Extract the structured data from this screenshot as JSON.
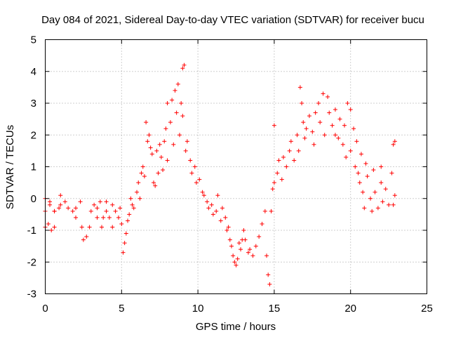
{
  "chart_data": {
    "type": "scatter",
    "title": "Day 084 of 2021, Sidereal Day-to-day VTEC variation (SDTVAR) for receiver bucu",
    "xlabel": "GPS time / hours",
    "ylabel": "SDTVAR / TECUs",
    "xlim": [
      0,
      25
    ],
    "ylim": [
      -3,
      5
    ],
    "xticks": [
      "0",
      "5",
      "10",
      "15",
      "20",
      "25"
    ],
    "yticks": [
      "-3",
      "-2",
      "-1",
      "0",
      "1",
      "2",
      "3",
      "4",
      "5"
    ],
    "grid": true,
    "marker": "+",
    "color": "#ff0000",
    "series": [
      {
        "points": [
          [
            0.0,
            -0.9
          ],
          [
            0.2,
            -0.8
          ],
          [
            0.4,
            -1.0
          ],
          [
            0.6,
            -0.9
          ],
          [
            0.0,
            -0.4
          ],
          [
            0.3,
            -0.2
          ],
          [
            0.6,
            -0.4
          ],
          [
            0.9,
            -0.3
          ],
          [
            0.0,
            0.0
          ],
          [
            0.3,
            -0.1
          ],
          [
            0.6,
            -0.4
          ],
          [
            1.0,
            -0.2
          ],
          [
            1.0,
            0.1
          ],
          [
            1.3,
            -0.1
          ],
          [
            1.5,
            -0.3
          ],
          [
            1.8,
            -0.4
          ],
          [
            2.0,
            -0.3
          ],
          [
            2.0,
            -0.6
          ],
          [
            2.3,
            -0.1
          ],
          [
            2.4,
            -0.9
          ],
          [
            2.5,
            -1.3
          ],
          [
            2.7,
            -1.2
          ],
          [
            2.9,
            -0.9
          ],
          [
            3.0,
            -0.4
          ],
          [
            3.2,
            -0.2
          ],
          [
            3.4,
            -0.3
          ],
          [
            3.4,
            -0.6
          ],
          [
            3.6,
            -0.1
          ],
          [
            3.7,
            -0.9
          ],
          [
            3.8,
            -0.6
          ],
          [
            4.0,
            -0.4
          ],
          [
            4.0,
            -0.1
          ],
          [
            4.2,
            -0.6
          ],
          [
            4.4,
            -0.2
          ],
          [
            4.4,
            -0.9
          ],
          [
            4.6,
            -0.4
          ],
          [
            4.8,
            -0.6
          ],
          [
            5.0,
            -0.8
          ],
          [
            4.9,
            -0.3
          ],
          [
            5.1,
            -1.7
          ],
          [
            5.2,
            -1.4
          ],
          [
            5.3,
            -1.1
          ],
          [
            5.4,
            -0.7
          ],
          [
            5.5,
            -0.5
          ],
          [
            5.6,
            0.0
          ],
          [
            5.7,
            -0.2
          ],
          [
            5.8,
            -0.3
          ],
          [
            6.0,
            0.2
          ],
          [
            6.1,
            0.5
          ],
          [
            6.2,
            0.0
          ],
          [
            6.3,
            0.8
          ],
          [
            6.4,
            1.0
          ],
          [
            6.5,
            0.7
          ],
          [
            6.6,
            2.4
          ],
          [
            6.7,
            1.8
          ],
          [
            6.8,
            2.0
          ],
          [
            6.9,
            1.6
          ],
          [
            7.0,
            1.4
          ],
          [
            7.1,
            0.5
          ],
          [
            7.2,
            0.4
          ],
          [
            7.3,
            1.5
          ],
          [
            7.4,
            0.8
          ],
          [
            7.5,
            1.7
          ],
          [
            7.6,
            1.3
          ],
          [
            7.7,
            0.9
          ],
          [
            7.8,
            1.8
          ],
          [
            7.9,
            2.2
          ],
          [
            8.0,
            1.2
          ],
          [
            8.0,
            3.0
          ],
          [
            8.2,
            2.4
          ],
          [
            8.3,
            3.1
          ],
          [
            8.4,
            1.7
          ],
          [
            8.5,
            3.4
          ],
          [
            8.6,
            2.7
          ],
          [
            8.7,
            3.6
          ],
          [
            8.8,
            2.0
          ],
          [
            8.9,
            3.0
          ],
          [
            9.0,
            4.1
          ],
          [
            9.0,
            2.6
          ],
          [
            9.1,
            4.2
          ],
          [
            9.2,
            1.5
          ],
          [
            9.3,
            1.8
          ],
          [
            9.5,
            1.2
          ],
          [
            9.6,
            0.8
          ],
          [
            9.8,
            1.0
          ],
          [
            9.9,
            0.5
          ],
          [
            10.1,
            0.6
          ],
          [
            10.3,
            0.2
          ],
          [
            10.4,
            0.1
          ],
          [
            10.6,
            -0.1
          ],
          [
            10.7,
            -0.3
          ],
          [
            10.9,
            -0.2
          ],
          [
            11.0,
            -0.5
          ],
          [
            11.2,
            -0.4
          ],
          [
            11.3,
            0.1
          ],
          [
            11.5,
            -0.7
          ],
          [
            11.6,
            -0.3
          ],
          [
            11.8,
            -0.6
          ],
          [
            11.9,
            -1.0
          ],
          [
            12.0,
            -0.9
          ],
          [
            12.1,
            -1.3
          ],
          [
            12.2,
            -1.5
          ],
          [
            12.3,
            -1.8
          ],
          [
            12.4,
            -2.0
          ],
          [
            12.5,
            -2.1
          ],
          [
            12.6,
            -1.9
          ],
          [
            12.7,
            -1.4
          ],
          [
            12.8,
            -1.6
          ],
          [
            12.9,
            -1.3
          ],
          [
            13.0,
            -1.0
          ],
          [
            13.1,
            -1.3
          ],
          [
            13.3,
            -1.7
          ],
          [
            13.4,
            -1.6
          ],
          [
            13.6,
            -1.8
          ],
          [
            13.8,
            -1.5
          ],
          [
            14.0,
            -1.2
          ],
          [
            14.2,
            -0.8
          ],
          [
            14.4,
            -0.4
          ],
          [
            14.5,
            -1.8
          ],
          [
            14.6,
            -2.4
          ],
          [
            14.7,
            -2.7
          ],
          [
            14.8,
            -0.4
          ],
          [
            14.9,
            0.3
          ],
          [
            15.0,
            0.5
          ],
          [
            15.0,
            2.3
          ],
          [
            15.2,
            0.8
          ],
          [
            15.3,
            1.2
          ],
          [
            15.5,
            0.6
          ],
          [
            15.6,
            1.3
          ],
          [
            15.8,
            1.0
          ],
          [
            16.0,
            1.5
          ],
          [
            16.1,
            1.8
          ],
          [
            16.3,
            1.2
          ],
          [
            16.5,
            2.0
          ],
          [
            16.6,
            1.5
          ],
          [
            16.7,
            3.5
          ],
          [
            16.8,
            3.0
          ],
          [
            16.9,
            2.4
          ],
          [
            17.0,
            1.9
          ],
          [
            17.1,
            2.2
          ],
          [
            17.3,
            2.6
          ],
          [
            17.5,
            2.1
          ],
          [
            17.6,
            1.7
          ],
          [
            17.7,
            2.7
          ],
          [
            17.9,
            3.0
          ],
          [
            18.0,
            2.4
          ],
          [
            18.2,
            3.3
          ],
          [
            18.3,
            2.0
          ],
          [
            18.5,
            3.2
          ],
          [
            18.6,
            2.7
          ],
          [
            18.8,
            2.3
          ],
          [
            19.0,
            2.0
          ],
          [
            19.0,
            2.8
          ],
          [
            19.2,
            1.9
          ],
          [
            19.3,
            2.5
          ],
          [
            19.5,
            1.7
          ],
          [
            19.6,
            2.3
          ],
          [
            19.7,
            1.3
          ],
          [
            19.8,
            3.0
          ],
          [
            20.0,
            1.5
          ],
          [
            20.0,
            2.8
          ],
          [
            20.2,
            2.2
          ],
          [
            20.3,
            1.0
          ],
          [
            20.4,
            1.8
          ],
          [
            20.5,
            0.8
          ],
          [
            20.6,
            0.5
          ],
          [
            20.7,
            1.4
          ],
          [
            20.8,
            0.2
          ],
          [
            20.9,
            -0.3
          ],
          [
            21.0,
            1.1
          ],
          [
            21.1,
            0.7
          ],
          [
            21.3,
            0.0
          ],
          [
            21.4,
            -0.4
          ],
          [
            21.5,
            0.9
          ],
          [
            21.6,
            0.2
          ],
          [
            21.8,
            -0.3
          ],
          [
            22.0,
            0.5
          ],
          [
            22.0,
            1.0
          ],
          [
            22.1,
            -0.1
          ],
          [
            22.3,
            0.3
          ],
          [
            22.5,
            -0.2
          ],
          [
            22.7,
            0.8
          ],
          [
            22.8,
            1.7
          ],
          [
            22.8,
            -0.2
          ],
          [
            22.9,
            1.8
          ],
          [
            22.9,
            0.1
          ]
        ]
      }
    ]
  }
}
